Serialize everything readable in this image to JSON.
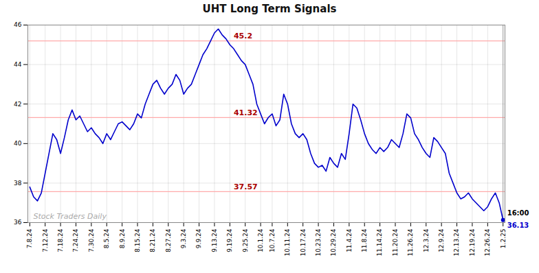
{
  "chart_data": {
    "type": "line",
    "title": "UHT Long Term Signals",
    "color": "#0000cc",
    "categories": [
      "7.8.24",
      null,
      null,
      null,
      "7.12.24",
      null,
      null,
      null,
      "7.18.24",
      null,
      null,
      null,
      "7.24.24",
      null,
      null,
      null,
      "7.30.24",
      null,
      null,
      null,
      "8.5.24",
      null,
      null,
      null,
      "8.9.24",
      null,
      null,
      null,
      "8.15.24",
      null,
      null,
      null,
      "8.21.24",
      null,
      null,
      null,
      "8.27.24",
      null,
      null,
      null,
      "9.3.24",
      null,
      null,
      null,
      "9.9.24",
      null,
      null,
      null,
      "9.13.24",
      null,
      null,
      null,
      "9.19.24",
      null,
      null,
      null,
      "9.25.24",
      null,
      null,
      null,
      "10.1.24",
      null,
      null,
      "10.7.24",
      null,
      null,
      null,
      "10.11.24",
      null,
      null,
      null,
      "10.17.24",
      null,
      null,
      null,
      "10.23.24",
      null,
      null,
      null,
      "10.29.24",
      null,
      null,
      null,
      "11.4.24",
      null,
      null,
      null,
      "11.8.24",
      null,
      null,
      null,
      "11.14.24",
      null,
      null,
      null,
      "11.20.24",
      null,
      null,
      null,
      "11.26.24",
      null,
      null,
      null,
      "12.3.24",
      null,
      null,
      null,
      "12.9.24",
      null,
      null,
      null,
      "12.13.24",
      null,
      null,
      null,
      "12.19.24",
      null,
      null,
      null,
      "12.26.24",
      null,
      null,
      null,
      "1.2.25"
    ],
    "values": [
      37.8,
      37.3,
      37.1,
      37.5,
      38.5,
      39.5,
      40.5,
      40.2,
      39.5,
      40.3,
      41.2,
      41.7,
      41.2,
      41.4,
      41.0,
      40.6,
      40.8,
      40.5,
      40.3,
      40.0,
      40.5,
      40.2,
      40.6,
      41.0,
      41.1,
      40.9,
      40.7,
      41.0,
      41.5,
      41.3,
      42.0,
      42.5,
      43.0,
      43.2,
      42.8,
      42.5,
      42.8,
      43.0,
      43.5,
      43.2,
      42.5,
      42.8,
      43.0,
      43.5,
      44.0,
      44.5,
      44.8,
      45.2,
      45.6,
      45.8,
      45.5,
      45.3,
      45.0,
      44.8,
      44.5,
      44.2,
      44.0,
      43.5,
      43.0,
      42.0,
      41.5,
      41.0,
      41.32,
      41.5,
      40.9,
      41.2,
      42.5,
      42.0,
      41.0,
      40.5,
      40.3,
      40.5,
      40.2,
      39.5,
      39.0,
      38.8,
      38.9,
      38.6,
      39.3,
      39.0,
      38.8,
      39.5,
      39.2,
      40.5,
      42.0,
      41.8,
      41.2,
      40.5,
      40.0,
      39.7,
      39.5,
      39.8,
      39.6,
      39.8,
      40.2,
      40.0,
      39.8,
      40.5,
      41.5,
      41.3,
      40.5,
      40.2,
      39.8,
      39.5,
      39.3,
      40.3,
      40.1,
      39.8,
      39.5,
      38.5,
      38.0,
      37.5,
      37.2,
      37.3,
      37.5,
      37.2,
      37.0,
      36.8,
      36.6,
      36.8,
      37.2,
      37.5,
      37.0,
      36.13
    ],
    "ylim": [
      36.0,
      46.0
    ],
    "yticks": [
      36,
      38,
      40,
      42,
      44,
      46
    ],
    "grid": true,
    "reference_lines": [
      {
        "value": 45.2,
        "label": "45.2",
        "color": "#ffaaaa",
        "label_color": "#aa0000"
      },
      {
        "value": 41.32,
        "label": "41.32",
        "color": "#ffaaaa",
        "label_color": "#aa0000"
      },
      {
        "value": 37.57,
        "label": "37.57",
        "color": "#ffaaaa",
        "label_color": "#aa0000"
      }
    ],
    "annotations": [
      {
        "text": "16:00",
        "color": "#000000"
      },
      {
        "text": "36.13",
        "color": "#0000cc"
      },
      {
        "text": "Stock Traders Daily",
        "color": "#aaaaaa"
      }
    ]
  }
}
